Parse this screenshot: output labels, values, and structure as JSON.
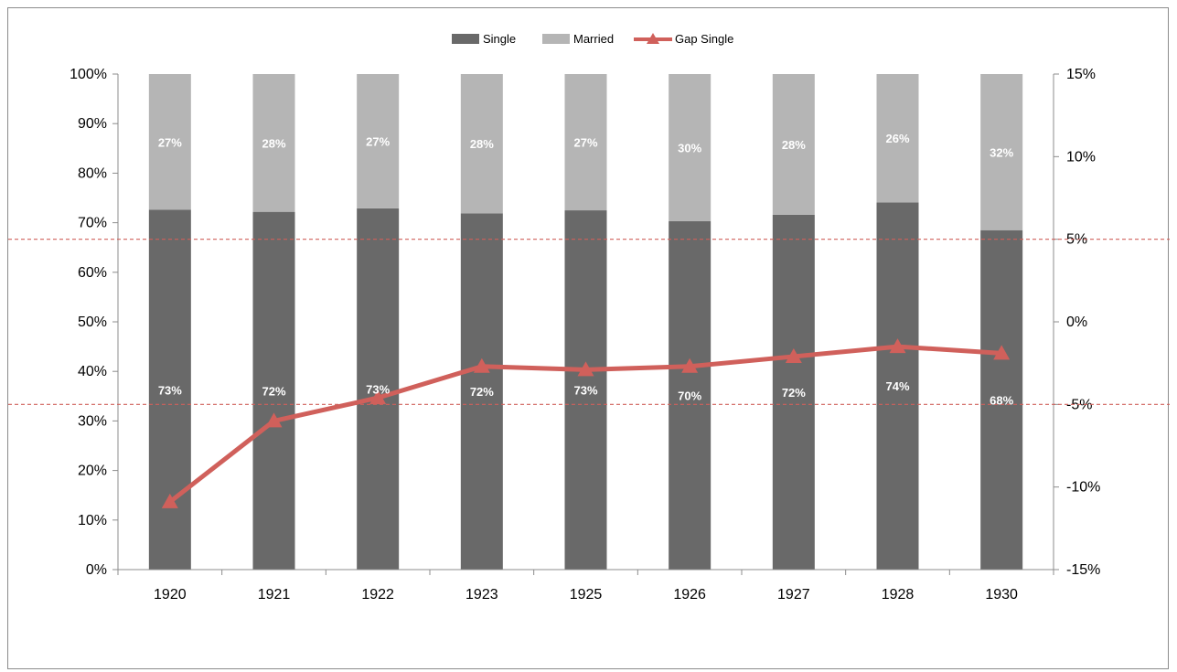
{
  "chart_data": {
    "type": "bar",
    "stacked": true,
    "categories": [
      "1920",
      "1921",
      "1922",
      "1923",
      "1925",
      "1926",
      "1927",
      "1928",
      "1930"
    ],
    "series": [
      {
        "name": "Single",
        "kind": "bar",
        "axis": "left",
        "color": "#696969",
        "values": [
          72.6,
          72.2,
          72.9,
          71.9,
          72.5,
          70.3,
          71.6,
          74.1,
          68.5
        ],
        "labels": [
          "73%",
          "72%",
          "73%",
          "72%",
          "73%",
          "70%",
          "72%",
          "74%",
          "68%"
        ]
      },
      {
        "name": "Married",
        "kind": "bar",
        "axis": "left",
        "color": "#b5b5b5",
        "values": [
          27.4,
          27.8,
          27.1,
          28.1,
          27.5,
          29.7,
          28.4,
          25.9,
          31.5
        ],
        "labels": [
          "27%",
          "28%",
          "27%",
          "28%",
          "27%",
          "30%",
          "28%",
          "26%",
          "32%"
        ]
      },
      {
        "name": "Gap Single",
        "kind": "line",
        "axis": "right",
        "color": "#d0605b",
        "values": [
          -10.9,
          -6.0,
          -4.6,
          -2.7,
          -2.9,
          -2.7,
          -2.1,
          -1.5,
          -1.9
        ]
      }
    ],
    "y_left": {
      "min": 0,
      "max": 100,
      "ticks": [
        0,
        10,
        20,
        30,
        40,
        50,
        60,
        70,
        80,
        90,
        100
      ],
      "tick_labels": [
        "0%",
        "10%",
        "20%",
        "30%",
        "40%",
        "50%",
        "60%",
        "70%",
        "80%",
        "90%",
        "100%"
      ]
    },
    "y_right": {
      "min": -15,
      "max": 15,
      "ticks": [
        -15,
        -10,
        -5,
        0,
        5,
        10,
        15
      ],
      "tick_labels": [
        "-15%",
        "-10%",
        "-5%",
        "0%",
        "5%",
        "10%",
        "15%"
      ]
    },
    "reference_lines": [
      {
        "axis": "right",
        "value": 5,
        "color": "#d0605b"
      },
      {
        "axis": "right",
        "value": -5,
        "color": "#d0605b"
      }
    ],
    "legend": {
      "position": "top",
      "entries": [
        "Single",
        "Married",
        "Gap Single"
      ]
    },
    "grid": false
  }
}
